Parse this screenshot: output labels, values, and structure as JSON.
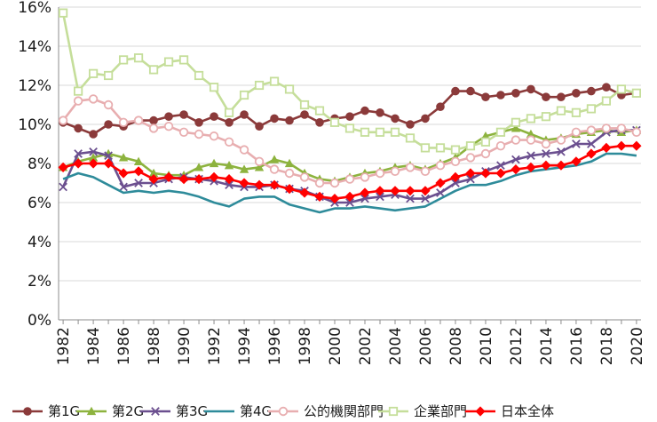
{
  "chart_data": {
    "type": "line",
    "title": "",
    "xlabel": "",
    "ylabel": "",
    "ylim": [
      0,
      16
    ],
    "yticks": [
      "0%",
      "2%",
      "4%",
      "6%",
      "8%",
      "10%",
      "12%",
      "14%",
      "16%"
    ],
    "ytick_values": [
      0,
      2,
      4,
      6,
      8,
      10,
      12,
      14,
      16
    ],
    "xlim": [
      1982,
      2020
    ],
    "xticks": [
      "1982",
      "1984",
      "1986",
      "1988",
      "1990",
      "1992",
      "1994",
      "1996",
      "1998",
      "2000",
      "2002",
      "2004",
      "2006",
      "2008",
      "2010",
      "2012",
      "2014",
      "2016",
      "2018",
      "2020"
    ],
    "xtick_values": [
      1982,
      1984,
      1986,
      1988,
      1990,
      1992,
      1994,
      1996,
      1998,
      2000,
      2002,
      2004,
      2006,
      2008,
      2010,
      2012,
      2014,
      2016,
      2018,
      2020
    ],
    "legend_position": "bottom",
    "years": [
      1982,
      1983,
      1984,
      1985,
      1986,
      1987,
      1988,
      1989,
      1990,
      1991,
      1992,
      1993,
      1994,
      1995,
      1996,
      1997,
      1998,
      1999,
      2000,
      2001,
      2002,
      2003,
      2004,
      2005,
      2006,
      2007,
      2008,
      2009,
      2010,
      2011,
      2012,
      2013,
      2014,
      2015,
      2016,
      2017,
      2018,
      2019,
      2020
    ],
    "series": [
      {
        "name": "第1G",
        "color": "#8B3A3A",
        "marker": "circle",
        "values": [
          10.1,
          9.8,
          9.5,
          10.0,
          9.9,
          10.2,
          10.2,
          10.4,
          10.5,
          10.1,
          10.4,
          10.1,
          10.5,
          9.9,
          10.3,
          10.2,
          10.5,
          10.1,
          10.3,
          10.4,
          10.7,
          10.6,
          10.3,
          10.0,
          10.3,
          10.9,
          11.7,
          11.7,
          11.4,
          11.5,
          11.6,
          11.8,
          11.4,
          11.4,
          11.6,
          11.7,
          11.9,
          11.5,
          11.6
        ]
      },
      {
        "name": "第2G",
        "color": "#8DB33E",
        "marker": "triangle",
        "values": [
          7.8,
          8.1,
          8.3,
          8.5,
          8.3,
          8.1,
          7.5,
          7.4,
          7.4,
          7.8,
          8.0,
          7.9,
          7.7,
          7.8,
          8.2,
          8.0,
          7.5,
          7.2,
          7.1,
          7.3,
          7.5,
          7.6,
          7.8,
          7.9,
          7.7,
          8.0,
          8.3,
          8.9,
          9.4,
          9.6,
          9.8,
          9.5,
          9.2,
          9.3,
          9.5,
          9.6,
          9.7,
          9.6,
          9.7
        ]
      },
      {
        "name": "第3G",
        "color": "#6B4F8F",
        "marker": "x",
        "values": [
          6.8,
          8.5,
          8.6,
          8.4,
          6.8,
          7.0,
          7.0,
          7.2,
          7.3,
          7.2,
          7.1,
          6.9,
          6.8,
          6.8,
          6.9,
          6.7,
          6.6,
          6.3,
          6.0,
          6.0,
          6.2,
          6.3,
          6.4,
          6.2,
          6.2,
          6.5,
          7.0,
          7.2,
          7.6,
          7.9,
          8.2,
          8.4,
          8.5,
          8.6,
          9.0,
          9.0,
          9.6,
          9.7,
          9.7
        ]
      },
      {
        "name": "第4G",
        "color": "#2E8B9A",
        "marker": "none",
        "values": [
          7.2,
          7.5,
          7.3,
          6.9,
          6.5,
          6.6,
          6.5,
          6.6,
          6.5,
          6.3,
          6.0,
          5.8,
          6.2,
          6.3,
          6.3,
          5.9,
          5.7,
          5.5,
          5.7,
          5.7,
          5.8,
          5.7,
          5.6,
          5.7,
          5.8,
          6.2,
          6.6,
          6.9,
          6.9,
          7.1,
          7.4,
          7.6,
          7.7,
          7.8,
          7.9,
          8.1,
          8.5,
          8.5,
          8.4
        ]
      },
      {
        "name": "公的機関部門",
        "color": "#E8AEB0",
        "marker": "circle-open",
        "values": [
          10.2,
          11.2,
          11.3,
          11.0,
          10.1,
          10.2,
          9.8,
          9.9,
          9.6,
          9.5,
          9.4,
          9.1,
          8.7,
          8.1,
          7.7,
          7.5,
          7.3,
          7.0,
          7.0,
          7.2,
          7.3,
          7.5,
          7.6,
          7.8,
          7.6,
          7.9,
          8.1,
          8.3,
          8.5,
          8.9,
          9.2,
          9.2,
          9.0,
          9.2,
          9.6,
          9.7,
          9.8,
          9.8,
          9.6
        ]
      },
      {
        "name": "企業部門",
        "color": "#C5DE9A",
        "marker": "square-open",
        "values": [
          15.7,
          11.7,
          12.6,
          12.5,
          13.3,
          13.4,
          12.8,
          13.2,
          13.3,
          12.5,
          11.9,
          10.6,
          11.5,
          12.0,
          12.2,
          11.8,
          11.0,
          10.7,
          10.1,
          9.8,
          9.6,
          9.6,
          9.6,
          9.3,
          8.8,
          8.8,
          8.7,
          8.9,
          9.1,
          9.6,
          10.1,
          10.3,
          10.4,
          10.7,
          10.6,
          10.8,
          11.2,
          11.8,
          11.6
        ]
      },
      {
        "name": "日本全体",
        "color": "#FF0000",
        "marker": "diamond",
        "values": [
          7.8,
          8.0,
          8.0,
          8.0,
          7.5,
          7.6,
          7.2,
          7.3,
          7.2,
          7.2,
          7.3,
          7.2,
          7.0,
          6.9,
          6.9,
          6.7,
          6.5,
          6.3,
          6.2,
          6.3,
          6.5,
          6.6,
          6.6,
          6.6,
          6.6,
          7.0,
          7.3,
          7.5,
          7.5,
          7.5,
          7.7,
          7.8,
          7.9,
          7.9,
          8.1,
          8.5,
          8.8,
          8.9,
          8.9
        ]
      }
    ]
  }
}
